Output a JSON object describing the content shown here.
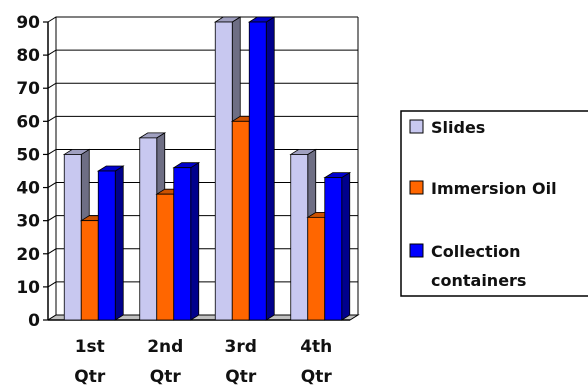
{
  "chart_data": {
    "type": "bar",
    "title": "",
    "xlabel": "",
    "ylabel": "",
    "categories": [
      [
        "1st",
        "Qtr"
      ],
      [
        "2nd",
        "Qtr"
      ],
      [
        "3rd",
        "Qtr"
      ],
      [
        "4th",
        "Qtr"
      ]
    ],
    "series": [
      {
        "name": "Slides",
        "values": [
          50,
          55,
          90,
          50
        ],
        "color": "#c8c8f0"
      },
      {
        "name": "Immersion Oil",
        "values": [
          30,
          38,
          60,
          31
        ],
        "color": "#ff6600"
      },
      {
        "name": [
          "Collection",
          "containers"
        ],
        "values": [
          45,
          46,
          90,
          43
        ],
        "color": "#0000ff"
      }
    ],
    "ylim": [
      0,
      90
    ],
    "yticks": [
      "0",
      "10",
      "20",
      "30",
      "40",
      "50",
      "60",
      "70",
      "80",
      "90"
    ],
    "grid": true,
    "legend_position": "right",
    "style": "3d-clustered-bar"
  }
}
